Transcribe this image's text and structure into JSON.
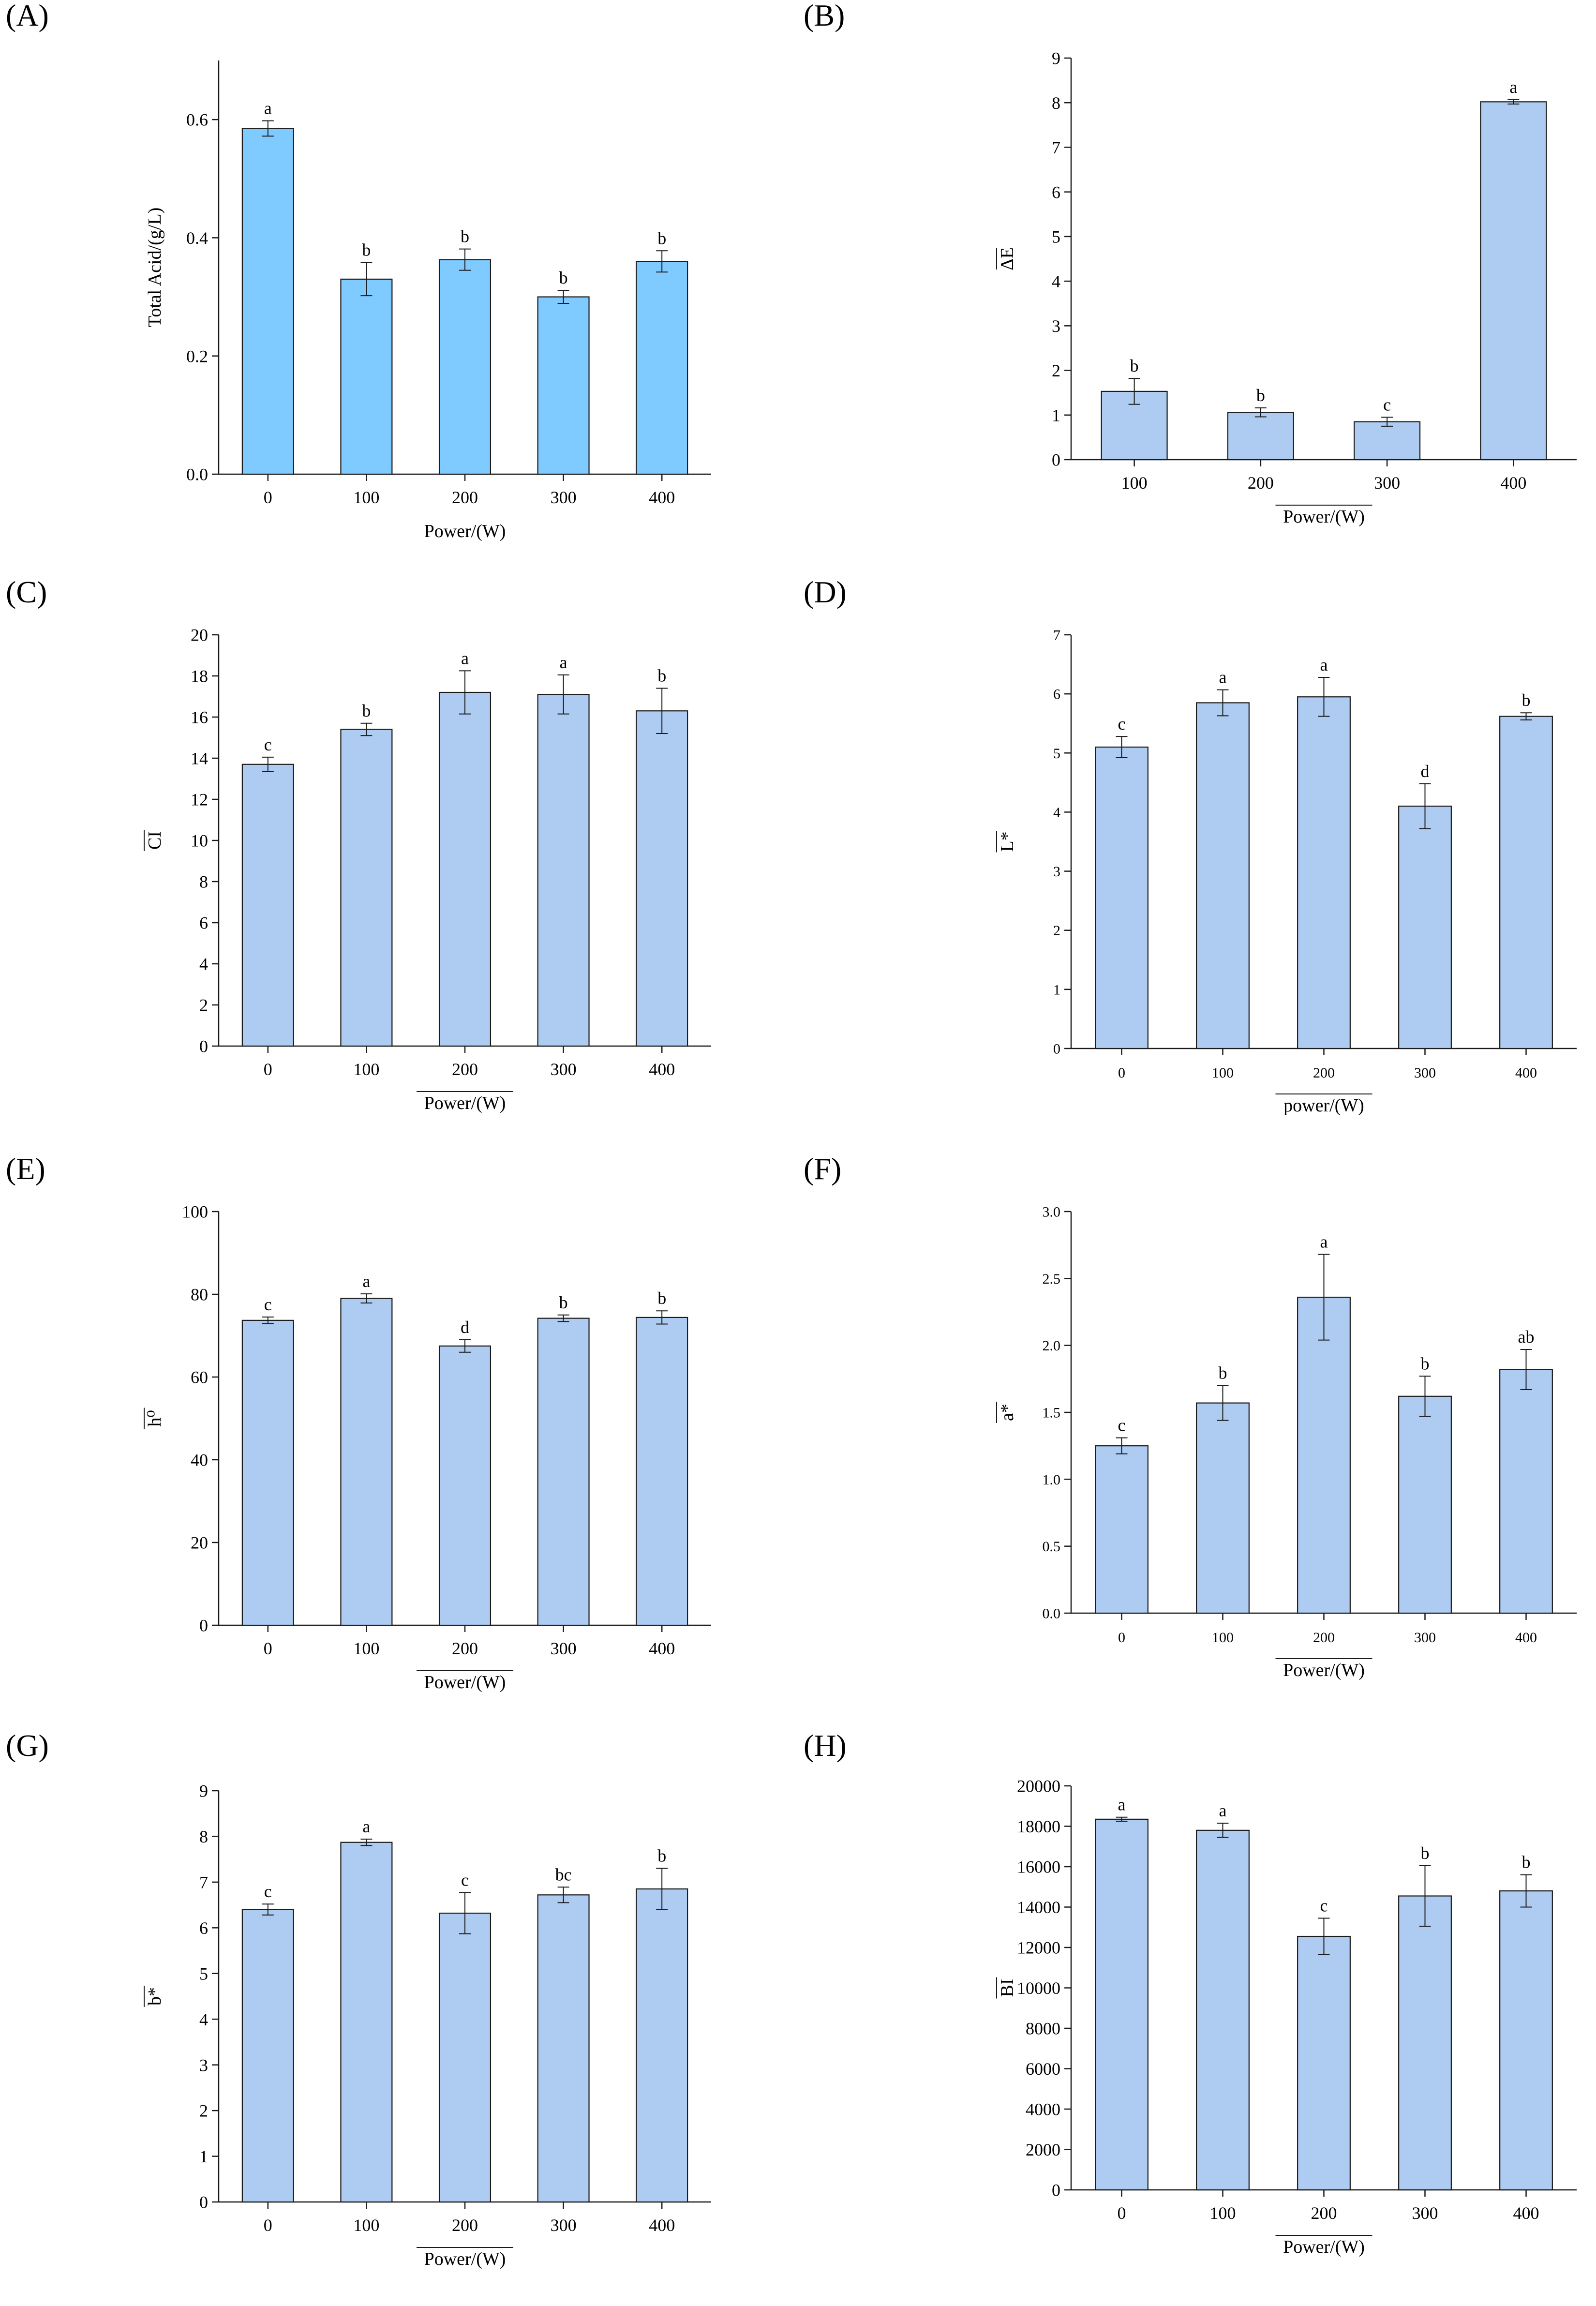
{
  "colors": {
    "panel_a_bar": "#7fcbff",
    "bar": "#aecbf2",
    "stroke": "#1a1a1a"
  },
  "chart_data": [
    {
      "id": "A",
      "letter": "(A)",
      "type": "bar",
      "categories": [
        "0",
        "100",
        "200",
        "300",
        "400"
      ],
      "values": [
        0.585,
        0.33,
        0.363,
        0.3,
        0.36
      ],
      "errors": [
        0.013,
        0.028,
        0.018,
        0.011,
        0.018
      ],
      "sig": [
        "a",
        "b",
        "b",
        "b",
        "b"
      ],
      "ylim": [
        0,
        0.7
      ],
      "yticks": [
        0.0,
        0.2,
        0.4,
        0.6
      ],
      "ytick_labels": [
        "0.0",
        "0.2",
        "0.4",
        "0.6"
      ],
      "ylabel": "Total Acid/(g/L)",
      "xlabel": "Power/(W)",
      "xlabel_overline": false,
      "ylabel_overline": false,
      "fill": "#7fcbff",
      "compact_ticks": false
    },
    {
      "id": "B",
      "letter": "(B)",
      "type": "bar",
      "categories": [
        "100",
        "200",
        "300",
        "400"
      ],
      "values": [
        1.53,
        1.06,
        0.85,
        8.02
      ],
      "errors": [
        0.29,
        0.1,
        0.1,
        0.05
      ],
      "sig": [
        "b",
        "b",
        "c",
        "a"
      ],
      "ylim": [
        0,
        9
      ],
      "yticks": [
        0,
        1,
        2,
        3,
        4,
        5,
        6,
        7,
        8,
        9
      ],
      "ytick_labels": [
        "0",
        "1",
        "2",
        "3",
        "4",
        "5",
        "6",
        "7",
        "8",
        "9"
      ],
      "ylabel": "ΔE",
      "xlabel": "Power/(W)",
      "xlabel_overline": true,
      "ylabel_overline": true,
      "fill": "#aecbf2",
      "compact_ticks": false
    },
    {
      "id": "C",
      "letter": "(C)",
      "type": "bar",
      "categories": [
        "0",
        "100",
        "200",
        "300",
        "400"
      ],
      "values": [
        13.7,
        15.4,
        17.2,
        17.1,
        16.3
      ],
      "errors": [
        0.35,
        0.3,
        1.05,
        0.95,
        1.1
      ],
      "sig": [
        "c",
        "b",
        "a",
        "a",
        "b"
      ],
      "ylim": [
        0,
        20
      ],
      "yticks": [
        0,
        2,
        4,
        6,
        8,
        10,
        12,
        14,
        16,
        18,
        20
      ],
      "ytick_labels": [
        "0",
        "2",
        "4",
        "6",
        "8",
        "10",
        "12",
        "14",
        "16",
        "18",
        "20"
      ],
      "ylabel": "CI",
      "xlabel": "Power/(W)",
      "xlabel_overline": true,
      "ylabel_overline": true,
      "fill": "#aecbf2",
      "compact_ticks": false
    },
    {
      "id": "D",
      "letter": "(D)",
      "type": "bar",
      "categories": [
        "0",
        "100",
        "200",
        "300",
        "400"
      ],
      "values": [
        5.1,
        5.85,
        5.95,
        4.1,
        5.62
      ],
      "errors": [
        0.18,
        0.22,
        0.33,
        0.38,
        0.06
      ],
      "sig": [
        "c",
        "a",
        "a",
        "d",
        "b"
      ],
      "ylim": [
        0,
        7
      ],
      "yticks": [
        0,
        1,
        2,
        3,
        4,
        5,
        6,
        7
      ],
      "ytick_labels": [
        "0",
        "1",
        "2",
        "3",
        "4",
        "5",
        "6",
        "7"
      ],
      "ylabel": "L*",
      "xlabel": "power/(W)",
      "xlabel_overline": true,
      "ylabel_overline": true,
      "fill": "#aecbf2",
      "compact_ticks": true
    },
    {
      "id": "E",
      "letter": "(E)",
      "type": "bar",
      "categories": [
        "0",
        "100",
        "200",
        "300",
        "400"
      ],
      "values": [
        73.7,
        79.0,
        67.5,
        74.2,
        74.4
      ],
      "errors": [
        0.8,
        1.1,
        1.5,
        0.8,
        1.6
      ],
      "sig": [
        "c",
        "a",
        "d",
        "b",
        "b"
      ],
      "ylim": [
        0,
        100
      ],
      "yticks": [
        0,
        20,
        40,
        60,
        80,
        100
      ],
      "ytick_labels": [
        "0",
        "20",
        "40",
        "60",
        "80",
        "100"
      ],
      "ylabel": "h⁰",
      "xlabel": "Power/(W)",
      "xlabel_overline": true,
      "ylabel_overline": true,
      "fill": "#aecbf2",
      "compact_ticks": false
    },
    {
      "id": "F",
      "letter": "(F)",
      "type": "bar",
      "categories": [
        "0",
        "100",
        "200",
        "300",
        "400"
      ],
      "values": [
        1.25,
        1.57,
        2.36,
        1.62,
        1.82
      ],
      "errors": [
        0.06,
        0.13,
        0.32,
        0.15,
        0.15
      ],
      "sig": [
        "c",
        "b",
        "a",
        "b",
        "ab"
      ],
      "ylim": [
        0,
        3.0
      ],
      "yticks": [
        0,
        0.5,
        1.0,
        1.5,
        2.0,
        2.5,
        3.0
      ],
      "ytick_labels": [
        "0.0",
        "0.5",
        "1.0",
        "1.5",
        "2.0",
        "2.5",
        "3.0"
      ],
      "ylabel": "a*",
      "xlabel": "Power/(W)",
      "xlabel_overline": true,
      "ylabel_overline": true,
      "fill": "#aecbf2",
      "compact_ticks": true
    },
    {
      "id": "G",
      "letter": "(G)",
      "type": "bar",
      "categories": [
        "0",
        "100",
        "200",
        "300",
        "400"
      ],
      "values": [
        6.4,
        7.87,
        6.32,
        6.72,
        6.85
      ],
      "errors": [
        0.12,
        0.07,
        0.45,
        0.17,
        0.45
      ],
      "sig": [
        "c",
        "a",
        "c",
        "bc",
        "b"
      ],
      "ylim": [
        0,
        9
      ],
      "yticks": [
        0,
        1,
        2,
        3,
        4,
        5,
        6,
        7,
        8,
        9
      ],
      "ytick_labels": [
        "0",
        "1",
        "2",
        "3",
        "4",
        "5",
        "6",
        "7",
        "8",
        "9"
      ],
      "ylabel": "b*",
      "xlabel": "Power/(W)",
      "xlabel_overline": true,
      "ylabel_overline": true,
      "fill": "#aecbf2",
      "compact_ticks": false
    },
    {
      "id": "H",
      "letter": "(H)",
      "type": "bar",
      "categories": [
        "0",
        "100",
        "200",
        "300",
        "400"
      ],
      "values": [
        18350,
        17800,
        12550,
        14550,
        14800
      ],
      "errors": [
        100,
        350,
        900,
        1500,
        800
      ],
      "sig": [
        "a",
        "a",
        "c",
        "b",
        "b"
      ],
      "ylim": [
        0,
        20000
      ],
      "yticks": [
        0,
        2000,
        4000,
        6000,
        8000,
        10000,
        12000,
        14000,
        16000,
        18000,
        20000
      ],
      "ytick_labels": [
        "0",
        "2000",
        "4000",
        "6000",
        "8000",
        "10000",
        "12000",
        "14000",
        "16000",
        "18000",
        "20000"
      ],
      "ylabel": "BI",
      "xlabel": "Power/(W)",
      "xlabel_overline": true,
      "ylabel_overline": true,
      "fill": "#aecbf2",
      "compact_ticks": false
    }
  ]
}
